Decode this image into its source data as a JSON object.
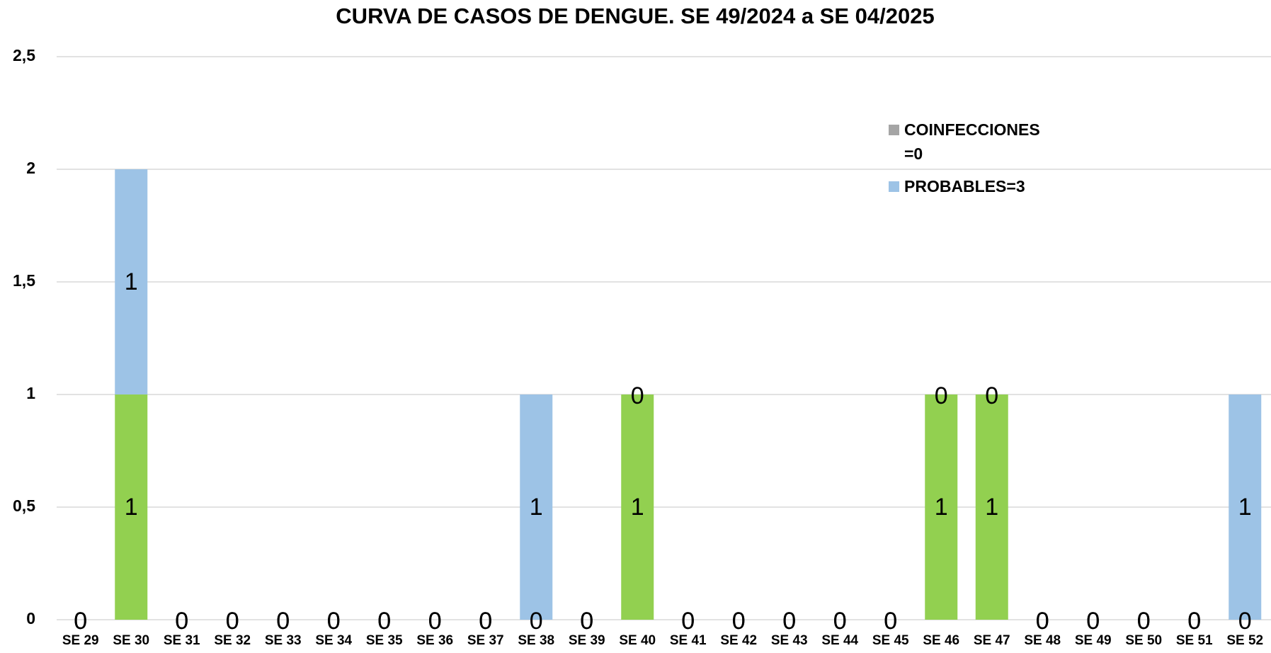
{
  "chart_data": {
    "type": "stacked_bar",
    "title": "CURVA DE CASOS DE DENGUE. SE 49/2024 a SE 04/2025",
    "categories": [
      "SE 29",
      "SE 30",
      "SE 31",
      "SE 32",
      "SE 33",
      "SE 34",
      "SE 35",
      "SE 36",
      "SE 37",
      "SE 38",
      "SE 39",
      "SE 40",
      "SE 41",
      "SE 42",
      "SE 43",
      "SE 44",
      "SE 45",
      "SE 46",
      "SE 47",
      "SE 48",
      "SE 49",
      "SE 50",
      "SE 51",
      "SE 52"
    ],
    "series": [
      {
        "color": "#92d050",
        "values": [
          0,
          1,
          0,
          0,
          0,
          0,
          0,
          0,
          0,
          0,
          0,
          1,
          0,
          0,
          0,
          0,
          0,
          1,
          1,
          0,
          0,
          0,
          0,
          0
        ]
      },
      {
        "name": "PROBABLES=3",
        "color": "#9dc3e6",
        "values": [
          0,
          1,
          0,
          0,
          0,
          0,
          0,
          0,
          0,
          1,
          0,
          0,
          0,
          0,
          0,
          0,
          0,
          0,
          0,
          0,
          0,
          0,
          0,
          1
        ]
      },
      {
        "name": "COINFECCIONES =0",
        "color": "#a5a5a5",
        "values": [
          0,
          0,
          0,
          0,
          0,
          0,
          0,
          0,
          0,
          0,
          0,
          0,
          0,
          0,
          0,
          0,
          0,
          0,
          0,
          0,
          0,
          0,
          0,
          0
        ]
      }
    ],
    "ylim": [
      0,
      2.5
    ],
    "yticks": [
      0,
      {
        "value": 0.5,
        "label": "0,5"
      },
      1,
      {
        "value": 1.5,
        "label": "1,5"
      },
      2,
      {
        "value": 2.5,
        "label": "2,5"
      }
    ],
    "grid": true,
    "data_labels_series": [
      0,
      1
    ],
    "legend_order": [
      2,
      1
    ]
  }
}
